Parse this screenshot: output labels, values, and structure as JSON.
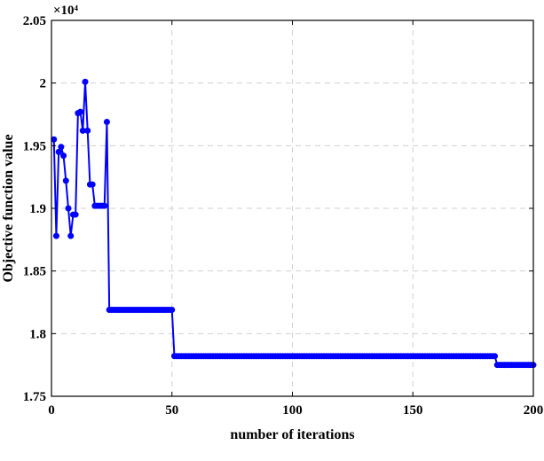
{
  "chart_data": {
    "type": "line",
    "xlabel": "number of iterations",
    "ylabel": "Objective function value",
    "y_multiplier_label": "×10⁴",
    "xlim": [
      0,
      200
    ],
    "ylim": [
      1.75,
      2.05
    ],
    "x_ticks": [
      0,
      50,
      100,
      150,
      200
    ],
    "y_ticks": [
      1.75,
      1.8,
      1.85,
      1.9,
      1.95,
      2,
      2.05
    ],
    "y_tick_labels": [
      "1.75",
      "1.8",
      "1.85",
      "1.9",
      "1.95",
      "2",
      "2.05"
    ],
    "grid": true,
    "color": "#0000ff",
    "series": [
      {
        "marker": "circle",
        "x": [
          1,
          2,
          3,
          4,
          5,
          6,
          7,
          8,
          9,
          10,
          11,
          12,
          13,
          14,
          15,
          16,
          17,
          18,
          19,
          20,
          21,
          22,
          23,
          24
        ],
        "y": [
          1.955,
          1.878,
          1.945,
          1.949,
          1.942,
          1.922,
          1.9,
          1.878,
          1.895,
          1.895,
          1.976,
          1.977,
          1.962,
          2.001,
          1.962,
          1.919,
          1.919,
          1.902,
          1.902,
          1.902,
          1.902,
          1.902,
          1.969,
          1.819
        ],
        "segments": [
          {
            "x_start": 24,
            "x_end": 50,
            "y": 1.819
          },
          {
            "x_start": 51,
            "x_end": 184,
            "y": 1.782
          },
          {
            "x_start": 185,
            "x_end": 200,
            "y": 1.775
          }
        ]
      }
    ]
  }
}
